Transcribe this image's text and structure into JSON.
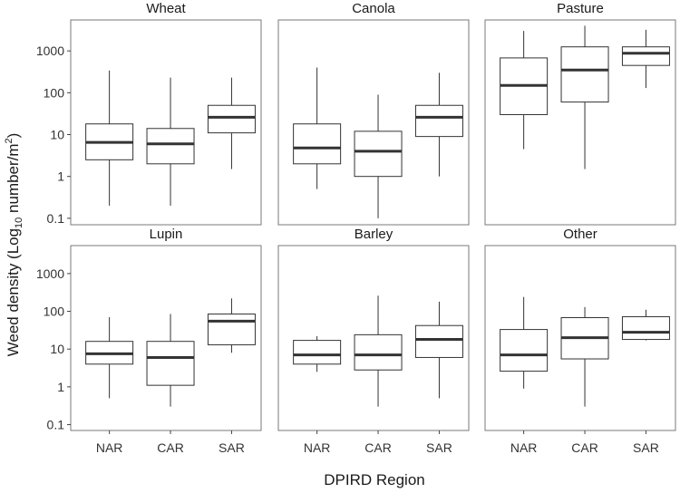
{
  "chart_data": {
    "type": "box",
    "ylabel": "Weed density (Log10 number/m2)",
    "ylabel_parts": [
      "Weed density (Log",
      "10",
      " number/m",
      "2",
      ")"
    ],
    "xlabel": "DPIRD Region",
    "y_scale": "log10",
    "ylim": [
      0.07,
      5500
    ],
    "yticks": [
      0.1,
      1,
      10,
      100,
      1000
    ],
    "ytick_labels": [
      "0.1",
      "1",
      "10",
      "100",
      "1000"
    ],
    "categories": [
      "NAR",
      "CAR",
      "SAR"
    ],
    "grid": false,
    "panels": [
      {
        "title": "Wheat",
        "boxes": [
          {
            "category": "NAR",
            "min": 0.2,
            "q1": 2.5,
            "median": 6.5,
            "q3": 18,
            "max": 340
          },
          {
            "category": "CAR",
            "min": 0.2,
            "q1": 2.0,
            "median": 6.0,
            "q3": 14,
            "max": 230
          },
          {
            "category": "SAR",
            "min": 1.5,
            "q1": 11,
            "median": 26,
            "q3": 50,
            "max": 230
          }
        ]
      },
      {
        "title": "Canola",
        "boxes": [
          {
            "category": "NAR",
            "min": 0.5,
            "q1": 2.0,
            "median": 4.8,
            "q3": 18,
            "max": 400
          },
          {
            "category": "CAR",
            "min": 0.1,
            "q1": 1.0,
            "median": 4.0,
            "q3": 12,
            "max": 90
          },
          {
            "category": "SAR",
            "min": 1.0,
            "q1": 9.0,
            "median": 26,
            "q3": 50,
            "max": 300
          }
        ]
      },
      {
        "title": "Pasture",
        "boxes": [
          {
            "category": "NAR",
            "min": 4.5,
            "q1": 30,
            "median": 150,
            "q3": 680,
            "max": 3000
          },
          {
            "category": "CAR",
            "min": 1.5,
            "q1": 60,
            "median": 350,
            "q3": 1250,
            "max": 4000
          },
          {
            "category": "SAR",
            "min": 130,
            "q1": 450,
            "median": 880,
            "q3": 1250,
            "max": 3200
          }
        ]
      },
      {
        "title": "Lupin",
        "boxes": [
          {
            "category": "NAR",
            "min": 0.5,
            "q1": 4.0,
            "median": 7.5,
            "q3": 16,
            "max": 70
          },
          {
            "category": "CAR",
            "min": 0.3,
            "q1": 1.1,
            "median": 6.0,
            "q3": 16,
            "max": 85
          },
          {
            "category": "SAR",
            "min": 8,
            "q1": 13,
            "median": 55,
            "q3": 85,
            "max": 220
          }
        ]
      },
      {
        "title": "Barley",
        "boxes": [
          {
            "category": "NAR",
            "min": 2.5,
            "q1": 4.0,
            "median": 7.0,
            "q3": 17,
            "max": 22
          },
          {
            "category": "CAR",
            "min": 0.3,
            "q1": 2.8,
            "median": 7.0,
            "q3": 24,
            "max": 260
          },
          {
            "category": "SAR",
            "min": 0.5,
            "q1": 6.0,
            "median": 18,
            "q3": 42,
            "max": 180
          }
        ]
      },
      {
        "title": "Other",
        "boxes": [
          {
            "category": "NAR",
            "min": 0.9,
            "q1": 2.6,
            "median": 7.0,
            "q3": 33,
            "max": 240
          },
          {
            "category": "CAR",
            "min": 0.3,
            "q1": 5.5,
            "median": 20,
            "q3": 68,
            "max": 130
          },
          {
            "category": "SAR",
            "min": 17,
            "q1": 18,
            "median": 28,
            "q3": 72,
            "max": 110
          }
        ]
      }
    ]
  }
}
